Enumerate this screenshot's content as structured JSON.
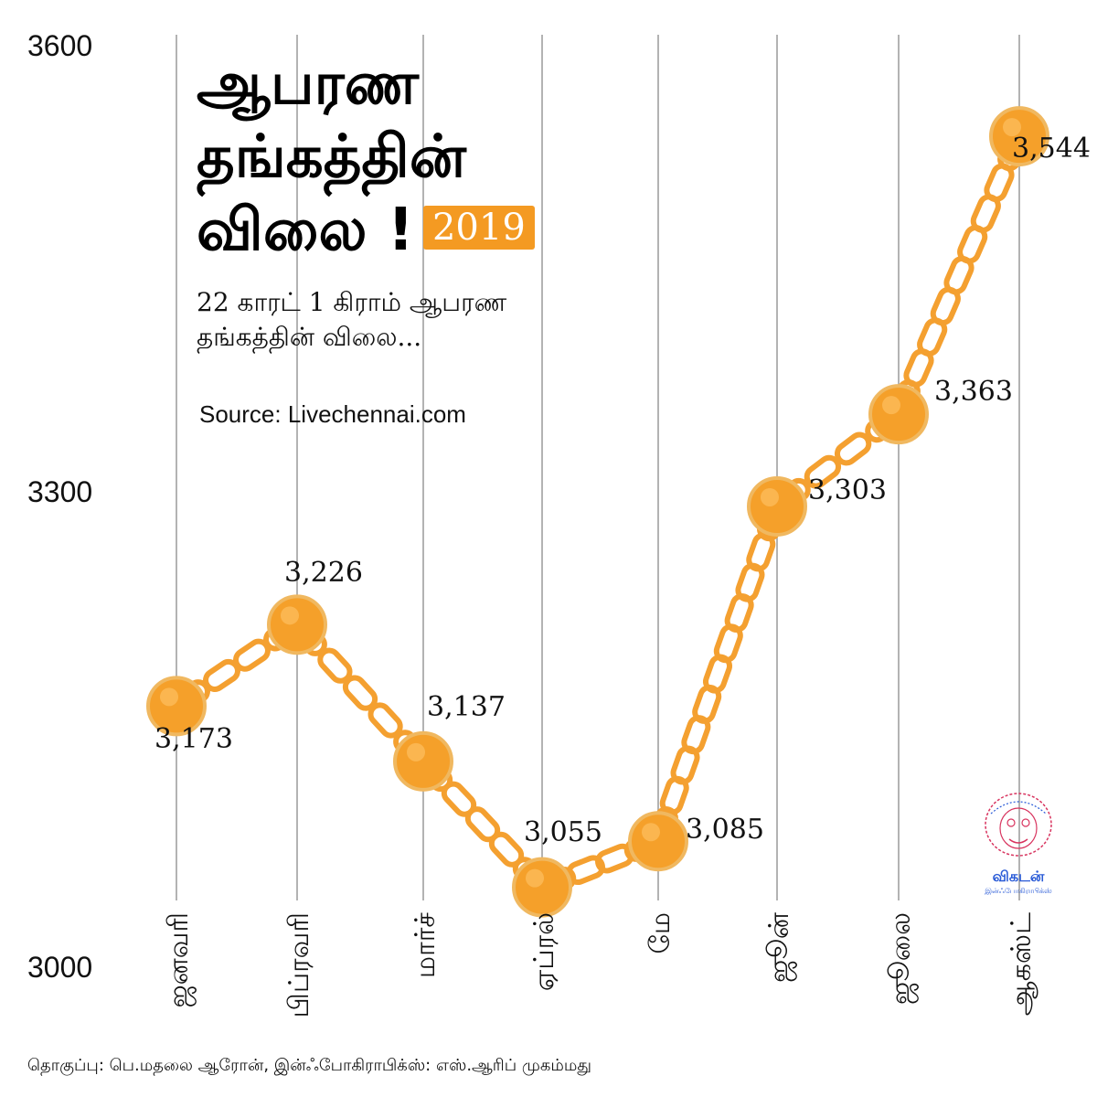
{
  "title": {
    "lines": [
      "ஆபரண",
      "தங்கத்தின்",
      "விலை !"
    ],
    "year_badge": "2019"
  },
  "subtitle": {
    "line1": "22 காரட் 1 கிராம் ஆபரண",
    "line2": "தங்கத்தின் விலை..."
  },
  "source": "Source: Livechennai.com",
  "credit": "தொகுப்பு: பெ.மதலை ஆரோன், இன்ஃபோகிராபிக்ஸ்: எஸ்.ஆரிப் முகம்மது",
  "logo": {
    "name": "விகடன்",
    "sub": "இன்ஃபோகிராபிக்ஸ்"
  },
  "colors": {
    "accent": "#f49a22",
    "chain": "#f4a030",
    "bead": "#f5a02a",
    "grid": "#9a9a9a"
  },
  "chart_data": {
    "type": "line",
    "categories": [
      "ஜனவரி",
      "பிப்ரவரி",
      "மார்ச்",
      "ஏப்ரல்",
      "மே",
      "ஜூன்",
      "ஜூலை",
      "ஆகஸ்ட்"
    ],
    "values": [
      3173,
      3226,
      3137,
      3055,
      3085,
      3303,
      3363,
      3544
    ],
    "data_labels": [
      "3,173",
      "3,226",
      "3,137",
      "3,055",
      "3,085",
      "3,303",
      "3,363",
      "3,544"
    ],
    "y_ticks": [
      "3600",
      "3300",
      "3000"
    ],
    "ylim": [
      3000,
      3600
    ],
    "grid": "vertical"
  }
}
